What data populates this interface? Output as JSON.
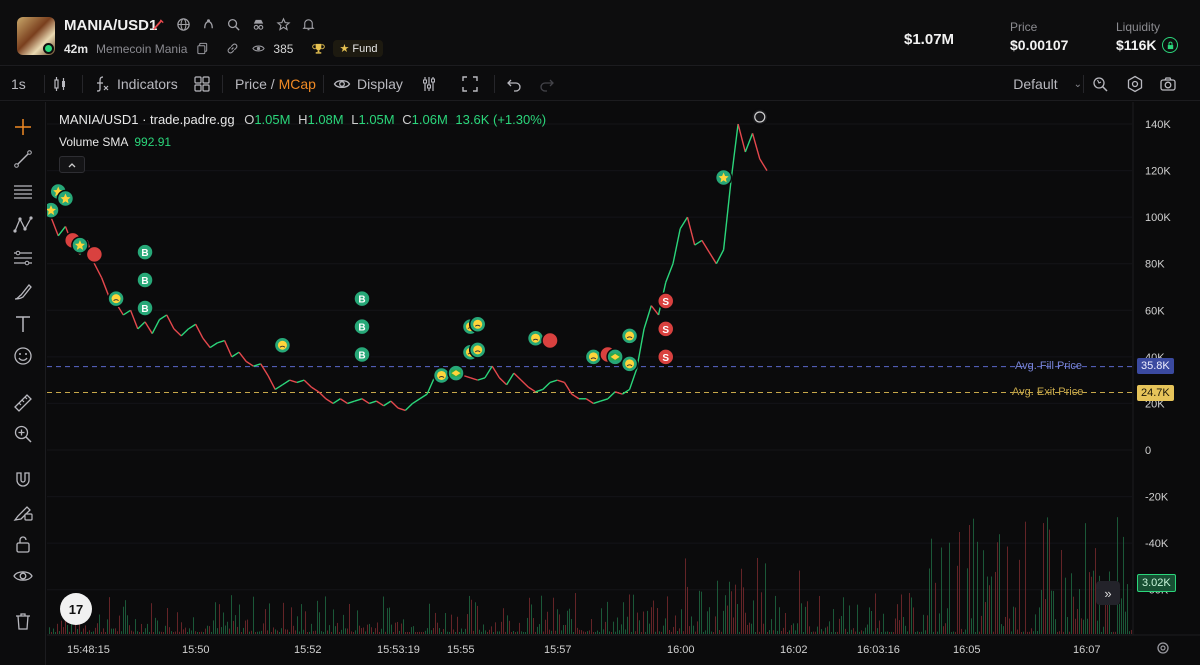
{
  "header": {
    "pair": "MANIA/USD1",
    "age": "42m",
    "token_name": "Memecoin Mania",
    "watchers": "385",
    "fund_label": "Fund",
    "market_cap": "$1.07M",
    "price_label": "Price",
    "price_value": "$0.00107",
    "liquidity_label": "Liquidity",
    "liquidity_value": "$116K"
  },
  "toolbar": {
    "interval": "1s",
    "indicators_label": "Indicators",
    "price_label": "Price",
    "slash": " / ",
    "mcap_label": "MCap",
    "display_label": "Display",
    "layout_label": "Default"
  },
  "legend": {
    "title": "MANIA/USD1 · trade.padre.gg",
    "o_label": "O",
    "o_value": "1.05M",
    "h_label": "H",
    "h_value": "1.08M",
    "l_label": "L",
    "l_value": "1.05M",
    "c_label": "C",
    "c_value": "1.06M",
    "change": "13.6K (+1.30%)",
    "volume_label": "Volume SMA",
    "volume_value": "992.91"
  },
  "chart_overlays": {
    "avg_fill_label": "Avg. Fill Price",
    "avg_fill_value": "35.8K",
    "avg_exit_label": "Avg. Exit Price",
    "avg_exit_value": "24.7K",
    "volume_tag": "3.02K",
    "tv_logo": "17"
  },
  "icons": {
    "header": [
      "edit-icon",
      "globe-icon",
      "community-icon",
      "search-icon",
      "spy-icon",
      "star-icon",
      "bell-icon"
    ],
    "sub": [
      "copy-icon",
      "link-icon",
      "eye-icon",
      "trophy-icon"
    ],
    "left_tools": [
      "crosshair-icon",
      "trendline-icon",
      "fib-icon",
      "pattern-icon",
      "projection-icon",
      "brush-icon",
      "text-icon",
      "emoji-icon",
      "ruler-icon",
      "zoom-icon",
      "magnet-icon",
      "lock-draw-icon",
      "lock-icon",
      "eye-icon",
      "trash-icon"
    ]
  },
  "colors": {
    "up": "#2bd67b",
    "down": "#e5484d",
    "accent": "#f08a24",
    "fill_line": "#5b68c9",
    "exit_line": "#c7a84a"
  },
  "chart_data": {
    "type": "line",
    "y_unit": "market cap (USD)",
    "y_ticks": [
      "140K",
      "120K",
      "100K",
      "80K",
      "60K",
      "40K",
      "20K",
      "0",
      "-20K",
      "-40K",
      "-60K"
    ],
    "y_values": [
      140000,
      120000,
      100000,
      80000,
      60000,
      40000,
      20000,
      0,
      -20000,
      -40000,
      -60000
    ],
    "x_ticks": [
      "15:48:15",
      "15:50",
      "15:52",
      "15:53:19",
      "15:55",
      "15:57",
      "16:00",
      "16:02",
      "16:03:16",
      "16:05",
      "16:07"
    ],
    "ylim": [
      -80000,
      150000
    ],
    "avg_fill_price": 35800,
    "avg_exit_price": 24700,
    "series": [
      {
        "values": [
          [
            0,
            100000
          ],
          [
            2,
            92000
          ],
          [
            4,
            96000
          ],
          [
            6,
            88000
          ],
          [
            8,
            84000
          ],
          [
            10,
            90000
          ],
          [
            12,
            80000
          ],
          [
            14,
            74000
          ],
          [
            16,
            66000
          ],
          [
            18,
            63000
          ],
          [
            20,
            58000
          ],
          [
            22,
            60000
          ],
          [
            24,
            52000
          ],
          [
            26,
            55000
          ],
          [
            28,
            50000
          ],
          [
            30,
            56000
          ],
          [
            32,
            58000
          ],
          [
            34,
            52000
          ],
          [
            36,
            49000
          ],
          [
            38,
            52000
          ],
          [
            40,
            54000
          ],
          [
            42,
            48000
          ],
          [
            44,
            44000
          ],
          [
            46,
            46000
          ],
          [
            48,
            47000
          ],
          [
            50,
            40000
          ],
          [
            52,
            42000
          ],
          [
            54,
            38000
          ],
          [
            56,
            36000
          ],
          [
            58,
            37000
          ],
          [
            60,
            32000
          ],
          [
            62,
            26000
          ],
          [
            64,
            28000
          ],
          [
            66,
            30000
          ],
          [
            68,
            29000
          ],
          [
            70,
            30000
          ],
          [
            72,
            27000
          ],
          [
            74,
            25000
          ],
          [
            76,
            22000
          ],
          [
            78,
            20000
          ],
          [
            80,
            22000
          ],
          [
            82,
            20000
          ],
          [
            84,
            21000
          ],
          [
            86,
            22000
          ],
          [
            88,
            20000
          ],
          [
            90,
            21000
          ],
          [
            92,
            19000
          ],
          [
            94,
            21000
          ],
          [
            96,
            18000
          ],
          [
            98,
            17000
          ],
          [
            100,
            20000
          ],
          [
            102,
            22000
          ],
          [
            104,
            24000
          ],
          [
            106,
            31000
          ],
          [
            108,
            33000
          ],
          [
            110,
            32000
          ],
          [
            112,
            34000
          ],
          [
            114,
            32000
          ],
          [
            116,
            31000
          ],
          [
            118,
            30000
          ],
          [
            120,
            31000
          ],
          [
            122,
            36000
          ],
          [
            124,
            31000
          ],
          [
            126,
            28000
          ],
          [
            128,
            33000
          ],
          [
            130,
            30000
          ],
          [
            132,
            27000
          ],
          [
            134,
            25000
          ],
          [
            136,
            26000
          ],
          [
            138,
            29000
          ],
          [
            140,
            30000
          ],
          [
            142,
            29000
          ],
          [
            144,
            24000
          ],
          [
            146,
            22000
          ],
          [
            148,
            22000
          ],
          [
            150,
            20000
          ],
          [
            152,
            21000
          ],
          [
            154,
            22000
          ],
          [
            156,
            25000
          ],
          [
            158,
            24000
          ],
          [
            160,
            26000
          ],
          [
            162,
            35000
          ],
          [
            164,
            52000
          ],
          [
            166,
            62000
          ],
          [
            168,
            58000
          ],
          [
            170,
            72000
          ],
          [
            172,
            80000
          ],
          [
            174,
            95000
          ],
          [
            176,
            100000
          ],
          [
            178,
            88000
          ],
          [
            180,
            90000
          ],
          [
            182,
            85000
          ],
          [
            184,
            80000
          ],
          [
            186,
            86000
          ],
          [
            188,
            115000
          ],
          [
            190,
            140000
          ],
          [
            192,
            128000
          ],
          [
            194,
            136000
          ],
          [
            196,
            125000
          ],
          [
            198,
            120000
          ]
        ]
      }
    ],
    "markers": [
      {
        "t": 0,
        "v": 103000,
        "kind": "star"
      },
      {
        "t": 2,
        "v": 111000,
        "kind": "star"
      },
      {
        "t": 4,
        "v": 108000,
        "kind": "star"
      },
      {
        "t": 6,
        "v": 90000,
        "kind": "sell"
      },
      {
        "t": 8,
        "v": 88000,
        "kind": "star"
      },
      {
        "t": 12,
        "v": 84000,
        "kind": "sell"
      },
      {
        "t": 18,
        "v": 65000,
        "kind": "face"
      },
      {
        "t": 26,
        "v": 85000,
        "kind": "B"
      },
      {
        "t": 26,
        "v": 73000,
        "kind": "B"
      },
      {
        "t": 26,
        "v": 61000,
        "kind": "B"
      },
      {
        "t": 64,
        "v": 45000,
        "kind": "face"
      },
      {
        "t": 86,
        "v": 65000,
        "kind": "B"
      },
      {
        "t": 86,
        "v": 53000,
        "kind": "B"
      },
      {
        "t": 86,
        "v": 41000,
        "kind": "B"
      },
      {
        "t": 108,
        "v": 32000,
        "kind": "face"
      },
      {
        "t": 112,
        "v": 33000,
        "kind": "flag"
      },
      {
        "t": 116,
        "v": 53000,
        "kind": "face"
      },
      {
        "t": 118,
        "v": 54000,
        "kind": "face"
      },
      {
        "t": 116,
        "v": 42000,
        "kind": "face"
      },
      {
        "t": 118,
        "v": 43000,
        "kind": "face"
      },
      {
        "t": 134,
        "v": 48000,
        "kind": "face"
      },
      {
        "t": 138,
        "v": 47000,
        "kind": "sell"
      },
      {
        "t": 150,
        "v": 40000,
        "kind": "face"
      },
      {
        "t": 154,
        "v": 41000,
        "kind": "sell"
      },
      {
        "t": 156,
        "v": 40000,
        "kind": "flag"
      },
      {
        "t": 160,
        "v": 49000,
        "kind": "face"
      },
      {
        "t": 160,
        "v": 37000,
        "kind": "face"
      },
      {
        "t": 170,
        "v": 64000,
        "kind": "S"
      },
      {
        "t": 170,
        "v": 52000,
        "kind": "S"
      },
      {
        "t": 170,
        "v": 40000,
        "kind": "S"
      },
      {
        "t": 186,
        "v": 117000,
        "kind": "star"
      },
      {
        "t": 196,
        "v": 143000,
        "kind": "spin"
      }
    ]
  }
}
